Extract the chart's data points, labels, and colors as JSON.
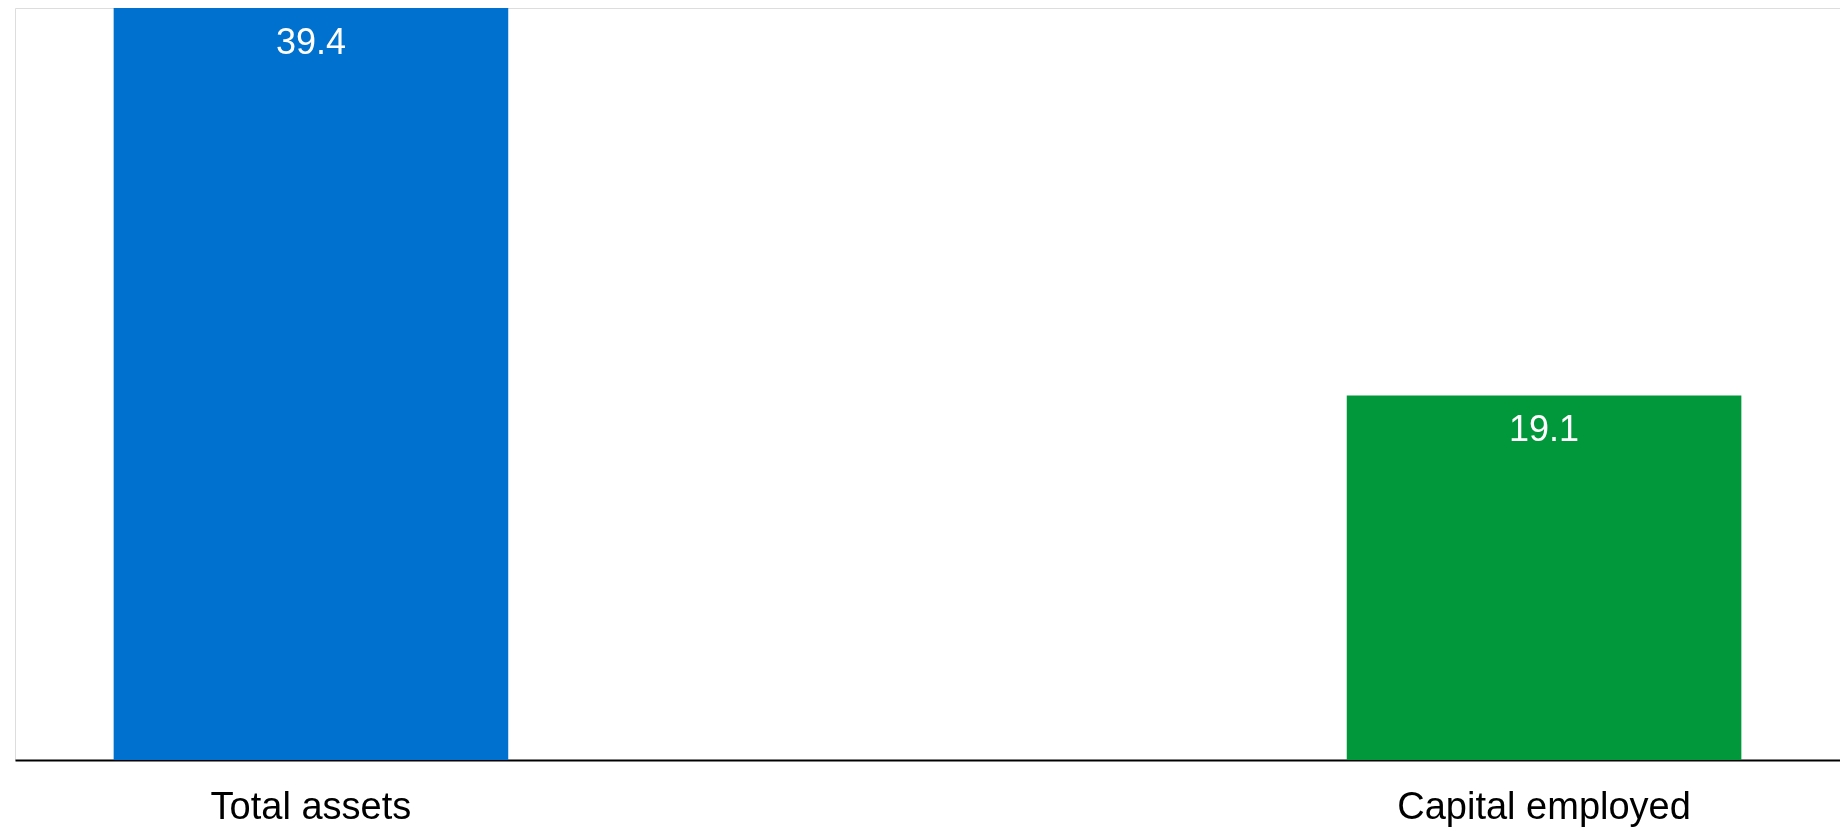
{
  "chart_data": {
    "type": "bar",
    "categories": [
      "Total assets",
      "Capital employed"
    ],
    "values": [
      39.4,
      19.1
    ],
    "colors": [
      "#0071ce",
      "#00983a"
    ],
    "data_labels": true,
    "grid": false,
    "legend": false
  }
}
